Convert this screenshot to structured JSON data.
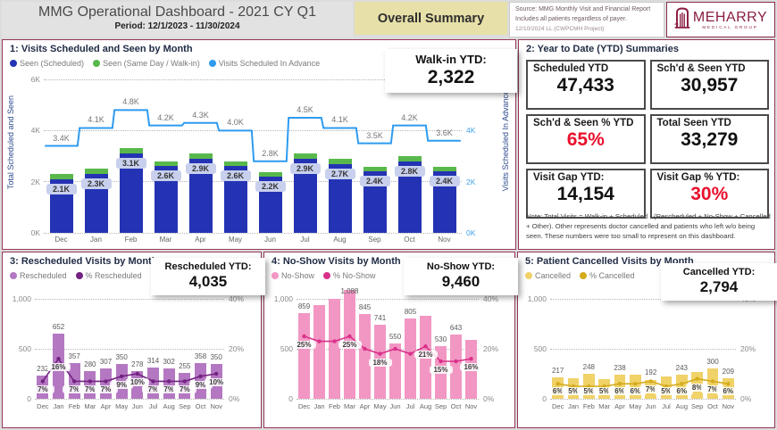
{
  "header": {
    "title": "MMG Operational Dashboard - 2021 CY Q1",
    "period": "Period: 12/1/2023 - 11/30/2024",
    "summary_button": "Overall Summary",
    "source_line1": "Source: MMG Monthly Visit and Financial Report",
    "source_line2": "Includes all patients regardless of payer.",
    "source_line3": "12/10/2024 LL (CWPCMH Project)",
    "logo_text": "MEHARRY",
    "logo_subtext": "MEDICAL GROUP"
  },
  "colors": {
    "maroon": "#8A1E41",
    "navy_bar": "#2433B4",
    "green_bar": "#59B84C",
    "blue_line": "#2E9BF0",
    "purple_bar": "#B478C2",
    "purple_line": "#732282",
    "pink_bar": "#F297C3",
    "pink_line": "#D9308A",
    "yellow_bar": "#F0D268",
    "yellow_line": "#D4AC1E",
    "red_value": "#E8112D"
  },
  "ytd_summary": {
    "title": "2: Year to Date (YTD) Summaries",
    "cards": [
      {
        "label": "Scheduled YTD",
        "value": "47,433",
        "red": false
      },
      {
        "label": "Sch'd & Seen YTD",
        "value": "30,957",
        "red": false
      },
      {
        "label": "Sch'd & Seen % YTD",
        "value": "65%",
        "red": true
      },
      {
        "label": "Total Seen YTD",
        "value": "33,279",
        "red": false
      },
      {
        "label": "Visit Gap YTD:",
        "value": "14,154",
        "red": false
      },
      {
        "label": "Visit Gap % YTD:",
        "value": "30%",
        "red": true
      }
    ],
    "note": "Note: Total Visits = Walk-in + Scheduled - (Rescheduled + No-Show + Cancelled + Other). Other represents doctor cancelled and patients who left w/o being seen. These numbers were too small to represent on this dashboard."
  },
  "chart_data": [
    {
      "id": "visits",
      "type": "combo-stacked-bar-step-line",
      "title": "1: Visits Scheduled and Seen by Month",
      "categories": [
        "Dec",
        "Jan",
        "Feb",
        "Mar",
        "Apr",
        "May",
        "Jun",
        "Jul",
        "Aug",
        "Sep",
        "Oct",
        "Nov"
      ],
      "series": [
        {
          "name": "Seen (Scheduled)",
          "type": "bar",
          "color": "#2433B4",
          "values": [
            2100,
            2300,
            3100,
            2600,
            2900,
            2600,
            2200,
            2900,
            2700,
            2400,
            2800,
            2400
          ],
          "labels": [
            "2.1K",
            "2.3K",
            "3.1K",
            "2.6K",
            "2.9K",
            "2.6K",
            "2.2K",
            "2.9K",
            "2.7K",
            "2.4K",
            "2.8K",
            "2.4K"
          ]
        },
        {
          "name": "Seen (Same Day / Walk-in)",
          "type": "bar",
          "color": "#59B84C",
          "values": [
            190,
            200,
            210,
            200,
            200,
            190,
            180,
            210,
            200,
            180,
            200,
            180
          ]
        },
        {
          "name": "Visits Scheduled In Advance",
          "type": "step-line",
          "color": "#2E9BF0",
          "values": [
            3400,
            4100,
            4800,
            4200,
            4300,
            4000,
            2800,
            4500,
            4100,
            3500,
            4200,
            3600
          ],
          "labels": [
            "3.4K",
            "4.1K",
            "4.8K",
            "4.2K",
            "4.3K",
            "4.0K",
            "2.8K",
            "4.5K",
            "4.1K",
            "3.5K",
            "4.2K",
            "3.6K"
          ]
        }
      ],
      "left_axis": {
        "title": "Total Scheduled and Seen",
        "ticks": [
          "0K",
          "2K",
          "4K",
          "6K"
        ],
        "max": 6000
      },
      "right_axis": {
        "title": "Visits Scheduled In Advance",
        "ticks": [
          "0K",
          "2K",
          "4K",
          "6K"
        ],
        "max": 6000
      },
      "ytd_label": "Walk-in YTD:",
      "ytd_value": "2,322"
    },
    {
      "id": "rescheduled",
      "type": "combo-bar-line",
      "title": "3: Rescheduled Visits by Month",
      "legend": [
        "Rescheduled",
        "% Rescheduled"
      ],
      "bar_color": "#B478C2",
      "line_color": "#732282",
      "categories": [
        "Dec",
        "Jan",
        "Feb",
        "Mar",
        "Apr",
        "May",
        "Jun",
        "Jul",
        "Aug",
        "Sep",
        "Oct",
        "Nov"
      ],
      "bar_values": [
        232,
        652,
        357,
        280,
        307,
        350,
        278,
        314,
        302,
        255,
        358,
        350
      ],
      "bar_labels": [
        "232",
        "652",
        "357",
        "280",
        "307",
        "350",
        "278",
        "314",
        "302",
        "255",
        "358",
        "350"
      ],
      "pct_values": [
        7,
        16,
        7,
        7,
        7,
        9,
        10,
        7,
        7,
        7,
        9,
        10
      ],
      "pct_labels": [
        "7%",
        "16%",
        "7%",
        "7%",
        "7%",
        "9%",
        "10%",
        "7%",
        "7%",
        "7%",
        "9%",
        "10%"
      ],
      "left_axis": {
        "ticks": [
          "0",
          "500",
          "1,000"
        ],
        "max": 1000
      },
      "right_axis": {
        "ticks": [
          "0%",
          "20%",
          "40%"
        ],
        "max": 40
      },
      "ytd_label": "Rescheduled YTD:",
      "ytd_value": "4,035"
    },
    {
      "id": "noshow",
      "type": "combo-bar-line",
      "title": "4: No-Show Visits by Month",
      "legend": [
        "No-Show",
        "% No-Show"
      ],
      "bar_color": "#F297C3",
      "line_color": "#D9308A",
      "categories": [
        "Dec",
        "Jan",
        "Feb",
        "Mar",
        "Apr",
        "May",
        "Jun",
        "Jul",
        "Aug",
        "Sep",
        "Oct",
        "Nov"
      ],
      "bar_values": [
        859,
        940,
        1000,
        1088,
        845,
        741,
        550,
        805,
        830,
        530,
        643,
        585
      ],
      "bar_labels": [
        "859",
        "",
        "",
        "1,088",
        "845",
        "741",
        "550",
        "805",
        "",
        "530",
        "643",
        ""
      ],
      "pct_values": [
        25,
        23,
        23,
        25,
        20,
        18,
        20,
        18,
        21,
        15,
        15,
        16
      ],
      "pct_labels": [
        "25%",
        "",
        "",
        "25%",
        "",
        "18%",
        "",
        "",
        "21%",
        "15%",
        "",
        "16%"
      ],
      "left_axis": {
        "ticks": [
          "0",
          "500",
          "1,000"
        ],
        "max": 1000
      },
      "right_axis": {
        "ticks": [
          "0%",
          "20%",
          "40%"
        ],
        "max": 40
      },
      "ytd_label": "No-Show YTD:",
      "ytd_value": "9,460"
    },
    {
      "id": "cancelled",
      "type": "combo-bar-line",
      "title": "5: Patient Cancelled Visits by Month",
      "legend": [
        "Cancelled",
        "% Cancelled"
      ],
      "bar_color": "#F0D268",
      "line_color": "#D4AC1E",
      "categories": [
        "Dec",
        "Jan",
        "Feb",
        "Mar",
        "Apr",
        "May",
        "Jun",
        "Jul",
        "Aug",
        "Sep",
        "Oct",
        "Nov"
      ],
      "bar_values": [
        217,
        205,
        248,
        195,
        238,
        245,
        192,
        220,
        243,
        268,
        300,
        209
      ],
      "bar_labels": [
        "217",
        "",
        "248",
        "",
        "238",
        "",
        "192",
        "",
        "243",
        "",
        "300",
        "209"
      ],
      "pct_values": [
        6,
        5,
        5,
        5,
        6,
        6,
        7,
        5,
        6,
        8,
        7,
        6
      ],
      "pct_labels": [
        "6%",
        "5%",
        "5%",
        "5%",
        "6%",
        "6%",
        "7%",
        "5%",
        "6%",
        "8%",
        "7%",
        "6%"
      ],
      "left_axis": {
        "ticks": [
          "0",
          "500",
          "1,000"
        ],
        "max": 1000
      },
      "right_axis": {
        "ticks": [
          "0%",
          "20%",
          "40%"
        ],
        "max": 40
      },
      "ytd_label": "Cancelled YTD:",
      "ytd_value": "2,794"
    }
  ]
}
